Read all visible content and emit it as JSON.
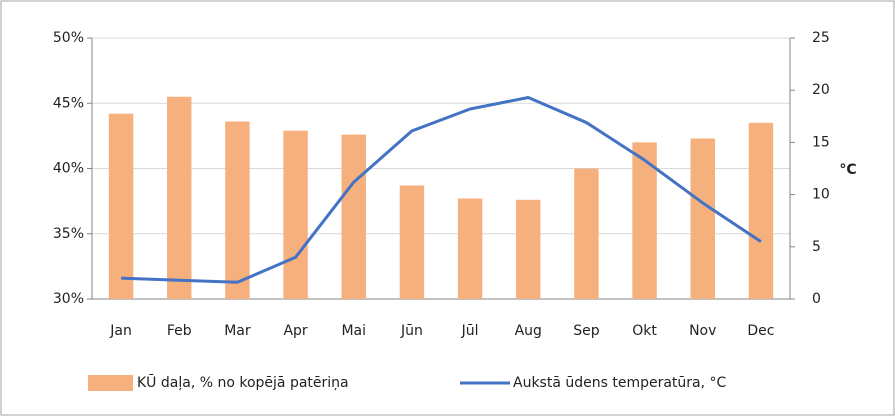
{
  "chart_data": {
    "type": "bar_line",
    "categories": [
      "Jan",
      "Feb",
      "Mar",
      "Apr",
      "Mai",
      "Jūn",
      "Jūl",
      "Aug",
      "Sep",
      "Okt",
      "Nov",
      "Dec"
    ],
    "series": [
      {
        "name": "KŪ daļa, % no kopējā patēriņa",
        "type": "bar",
        "color": "#f5b07e",
        "values": [
          44.2,
          45.5,
          43.6,
          42.9,
          42.6,
          38.7,
          37.7,
          37.6,
          40.0,
          42.0,
          42.3,
          43.5
        ]
      },
      {
        "name": "Aukstā ūdens temperatūra, °C",
        "type": "line",
        "axis": "y2",
        "color": "#4472c4",
        "values": [
          2.0,
          1.8,
          1.6,
          4.0,
          11.2,
          16.1,
          18.2,
          19.3,
          16.9,
          13.3,
          9.2,
          5.5
        ]
      }
    ],
    "ylim": [
      30,
      50
    ],
    "yticks": [
      {
        "value": 30,
        "label": "30%"
      },
      {
        "value": 35,
        "label": "35%"
      },
      {
        "value": 40,
        "label": "40%"
      },
      {
        "value": 45,
        "label": "45%"
      },
      {
        "value": 50,
        "label": "50%"
      }
    ],
    "y2lim": [
      0,
      25
    ],
    "y2ticks": [
      0,
      5,
      10,
      15,
      20,
      25
    ],
    "y2label": "°C",
    "grid": true,
    "legend": "bottom"
  }
}
